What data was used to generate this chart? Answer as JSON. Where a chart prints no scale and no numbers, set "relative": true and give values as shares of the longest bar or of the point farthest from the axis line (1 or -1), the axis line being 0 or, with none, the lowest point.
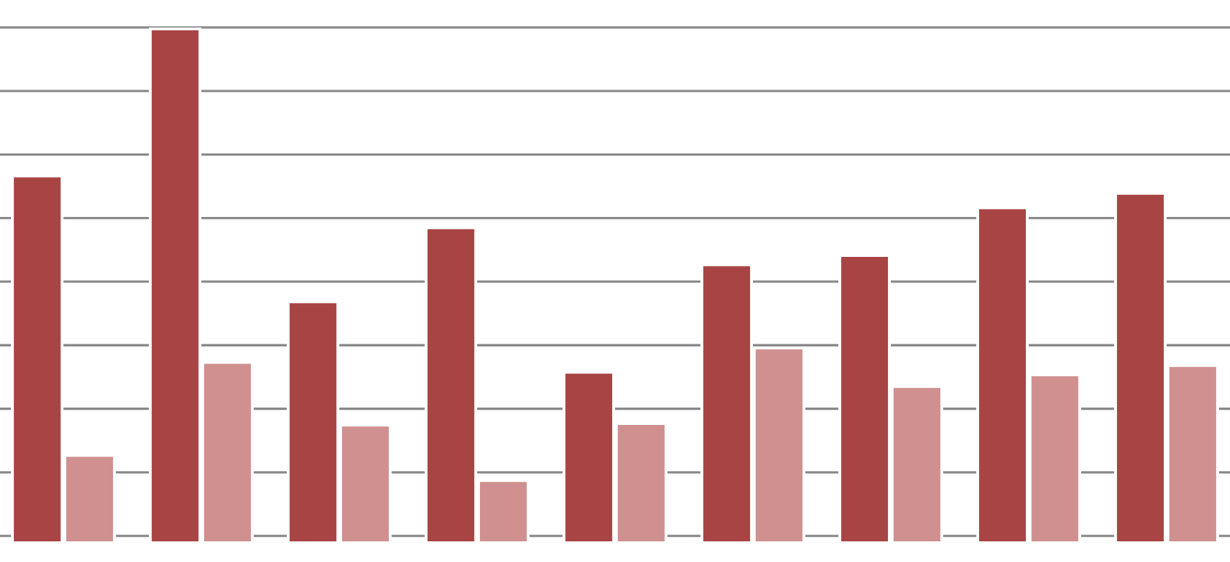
{
  "chart_data": {
    "type": "bar",
    "relative": true,
    "grid": "y",
    "legend": false,
    "categories": [
      null,
      null,
      null,
      null,
      null,
      null,
      null,
      null,
      null
    ],
    "series": [
      {
        "color": "#a84444",
        "values": [
          0.714,
          1,
          0.469,
          0.613,
          0.332,
          0.541,
          0.559,
          0.652,
          0.68
        ]
      },
      {
        "color": "#d09090",
        "values": [
          0.17,
          0.351,
          0.229,
          0.121,
          0.232,
          0.379,
          0.304,
          0.327,
          0.345
        ]
      }
    ]
  }
}
